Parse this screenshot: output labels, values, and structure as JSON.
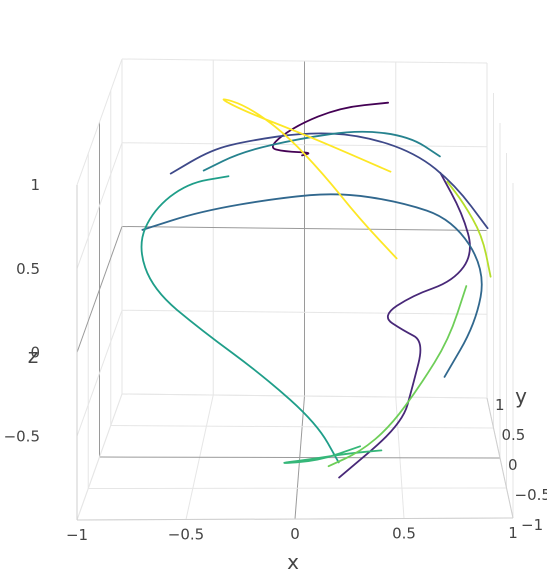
{
  "chart_data": {
    "type": "line3d",
    "title": "",
    "colorscale": "viridis",
    "colors": [
      "#440154",
      "#482878",
      "#3e4989",
      "#31688e",
      "#26828e",
      "#1f9e89",
      "#35b779",
      "#6ece58",
      "#b5de2b",
      "#fde725"
    ],
    "axes": {
      "x": {
        "title": "x",
        "range": [
          -1,
          1
        ],
        "ticks": [
          -1,
          -0.5,
          0,
          0.5,
          1
        ],
        "tick_labels": [
          "−1",
          "−0.5",
          "0",
          "0.5",
          "1"
        ]
      },
      "y": {
        "title": "y",
        "range": [
          -1,
          1
        ],
        "ticks": [
          -1,
          -0.5,
          0,
          0.5,
          1
        ],
        "tick_labels": [
          "−1",
          "−0.5",
          "0",
          "0.5",
          "1"
        ]
      },
      "z": {
        "title": "z",
        "range": [
          -1,
          1
        ],
        "ticks": [
          -0.5,
          0,
          0.5,
          1
        ],
        "tick_labels": [
          "−0.5",
          "0",
          "0.5",
          "1"
        ]
      }
    },
    "grid": true,
    "series": [
      {
        "color_index": 0,
        "points": [
          [
            0.45,
            0.55,
            0.92
          ],
          [
            0.2,
            0.85,
            0.78
          ],
          [
            -0.05,
            0.98,
            0.62
          ],
          [
            -0.2,
            0.95,
            0.5
          ],
          [
            -0.1,
            0.75,
            0.55
          ],
          [
            0.05,
            0.6,
            0.6
          ],
          [
            0.0,
            0.5,
            0.62
          ]
        ]
      },
      {
        "color_index": 1,
        "points": [
          [
            0.7,
            -0.05,
            0.72
          ],
          [
            0.8,
            -0.25,
            0.55
          ],
          [
            0.85,
            -0.35,
            0.35
          ],
          [
            0.75,
            -0.4,
            0.2
          ],
          [
            0.55,
            -0.5,
            0.15
          ],
          [
            0.4,
            -0.7,
            0.1
          ],
          [
            0.5,
            -0.8,
            0.05
          ],
          [
            0.6,
            -0.7,
            -0.05
          ],
          [
            0.55,
            -0.6,
            -0.35
          ],
          [
            0.5,
            -0.55,
            -0.6
          ],
          [
            0.2,
            -0.6,
            -0.9
          ]
        ]
      },
      {
        "color_index": 2,
        "points": [
          [
            0.95,
            0.2,
            0.3
          ],
          [
            0.8,
            0.5,
            0.45
          ],
          [
            0.6,
            0.75,
            0.55
          ],
          [
            0.3,
            0.9,
            0.6
          ],
          [
            0.0,
            0.98,
            0.58
          ],
          [
            -0.3,
            0.92,
            0.55
          ],
          [
            -0.5,
            0.85,
            0.52
          ],
          [
            -0.7,
            0.65,
            0.45
          ]
        ]
      },
      {
        "color_index": 3,
        "points": [
          [
            -0.8,
            0.15,
            0.3
          ],
          [
            -0.5,
            0.05,
            0.45
          ],
          [
            -0.1,
            0.0,
            0.55
          ],
          [
            0.2,
            -0.05,
            0.6
          ],
          [
            0.5,
            -0.2,
            0.6
          ],
          [
            0.75,
            -0.35,
            0.55
          ],
          [
            0.9,
            -0.5,
            0.3
          ],
          [
            0.85,
            -0.55,
            0.0
          ],
          [
            0.7,
            -0.6,
            -0.3
          ]
        ]
      },
      {
        "color_index": 4,
        "points": [
          [
            -0.5,
            0.3,
            0.6
          ],
          [
            -0.3,
            0.2,
            0.75
          ],
          [
            0.0,
            0.15,
            0.85
          ],
          [
            0.3,
            0.1,
            0.92
          ],
          [
            0.55,
            0.05,
            0.9
          ],
          [
            0.7,
            0.0,
            0.8
          ]
        ]
      },
      {
        "color_index": 5,
        "points": [
          [
            -0.4,
            0.75,
            0.4
          ],
          [
            -0.6,
            0.5,
            0.45
          ],
          [
            -0.75,
            0.2,
            0.4
          ],
          [
            -0.8,
            -0.1,
            0.3
          ],
          [
            -0.7,
            -0.4,
            0.15
          ],
          [
            -0.45,
            -0.65,
            0.0
          ],
          [
            -0.15,
            -0.85,
            -0.2
          ],
          [
            0.1,
            -0.95,
            -0.45
          ],
          [
            0.2,
            -0.9,
            -0.7
          ]
        ]
      },
      {
        "color_index": 6,
        "points": [
          [
            0.3,
            -0.5,
            -0.75
          ],
          [
            0.1,
            -0.6,
            -0.8
          ],
          [
            -0.1,
            -0.7,
            -0.78
          ],
          [
            0.05,
            -0.8,
            -0.72
          ],
          [
            0.25,
            -0.75,
            -0.7
          ],
          [
            0.4,
            -0.65,
            -0.72
          ]
        ]
      },
      {
        "color_index": 7,
        "points": [
          [
            0.85,
            0.35,
            -0.1
          ],
          [
            0.75,
            0.15,
            -0.35
          ],
          [
            0.6,
            -0.05,
            -0.55
          ],
          [
            0.45,
            -0.25,
            -0.72
          ],
          [
            0.3,
            -0.4,
            -0.82
          ],
          [
            0.15,
            -0.55,
            -0.85
          ]
        ]
      },
      {
        "color_index": 8,
        "points": [
          [
            0.95,
            -0.05,
            0.1
          ],
          [
            0.9,
            -0.2,
            0.4
          ],
          [
            0.8,
            -0.35,
            0.65
          ],
          [
            0.72,
            -0.42,
            0.8
          ]
        ]
      },
      {
        "color_index": 9,
        "points": [
          [
            0.5,
            0.8,
            -0.1
          ],
          [
            0.3,
            0.9,
            0.1
          ],
          [
            0.1,
            0.95,
            0.35
          ],
          [
            -0.1,
            0.9,
            0.6
          ],
          [
            -0.3,
            0.75,
            0.82
          ],
          [
            -0.45,
            0.55,
            0.95
          ],
          [
            -0.3,
            0.25,
            0.98
          ],
          [
            0.0,
            0.05,
            0.92
          ],
          [
            0.25,
            -0.1,
            0.85
          ],
          [
            0.45,
            -0.2,
            0.78
          ]
        ]
      }
    ]
  }
}
